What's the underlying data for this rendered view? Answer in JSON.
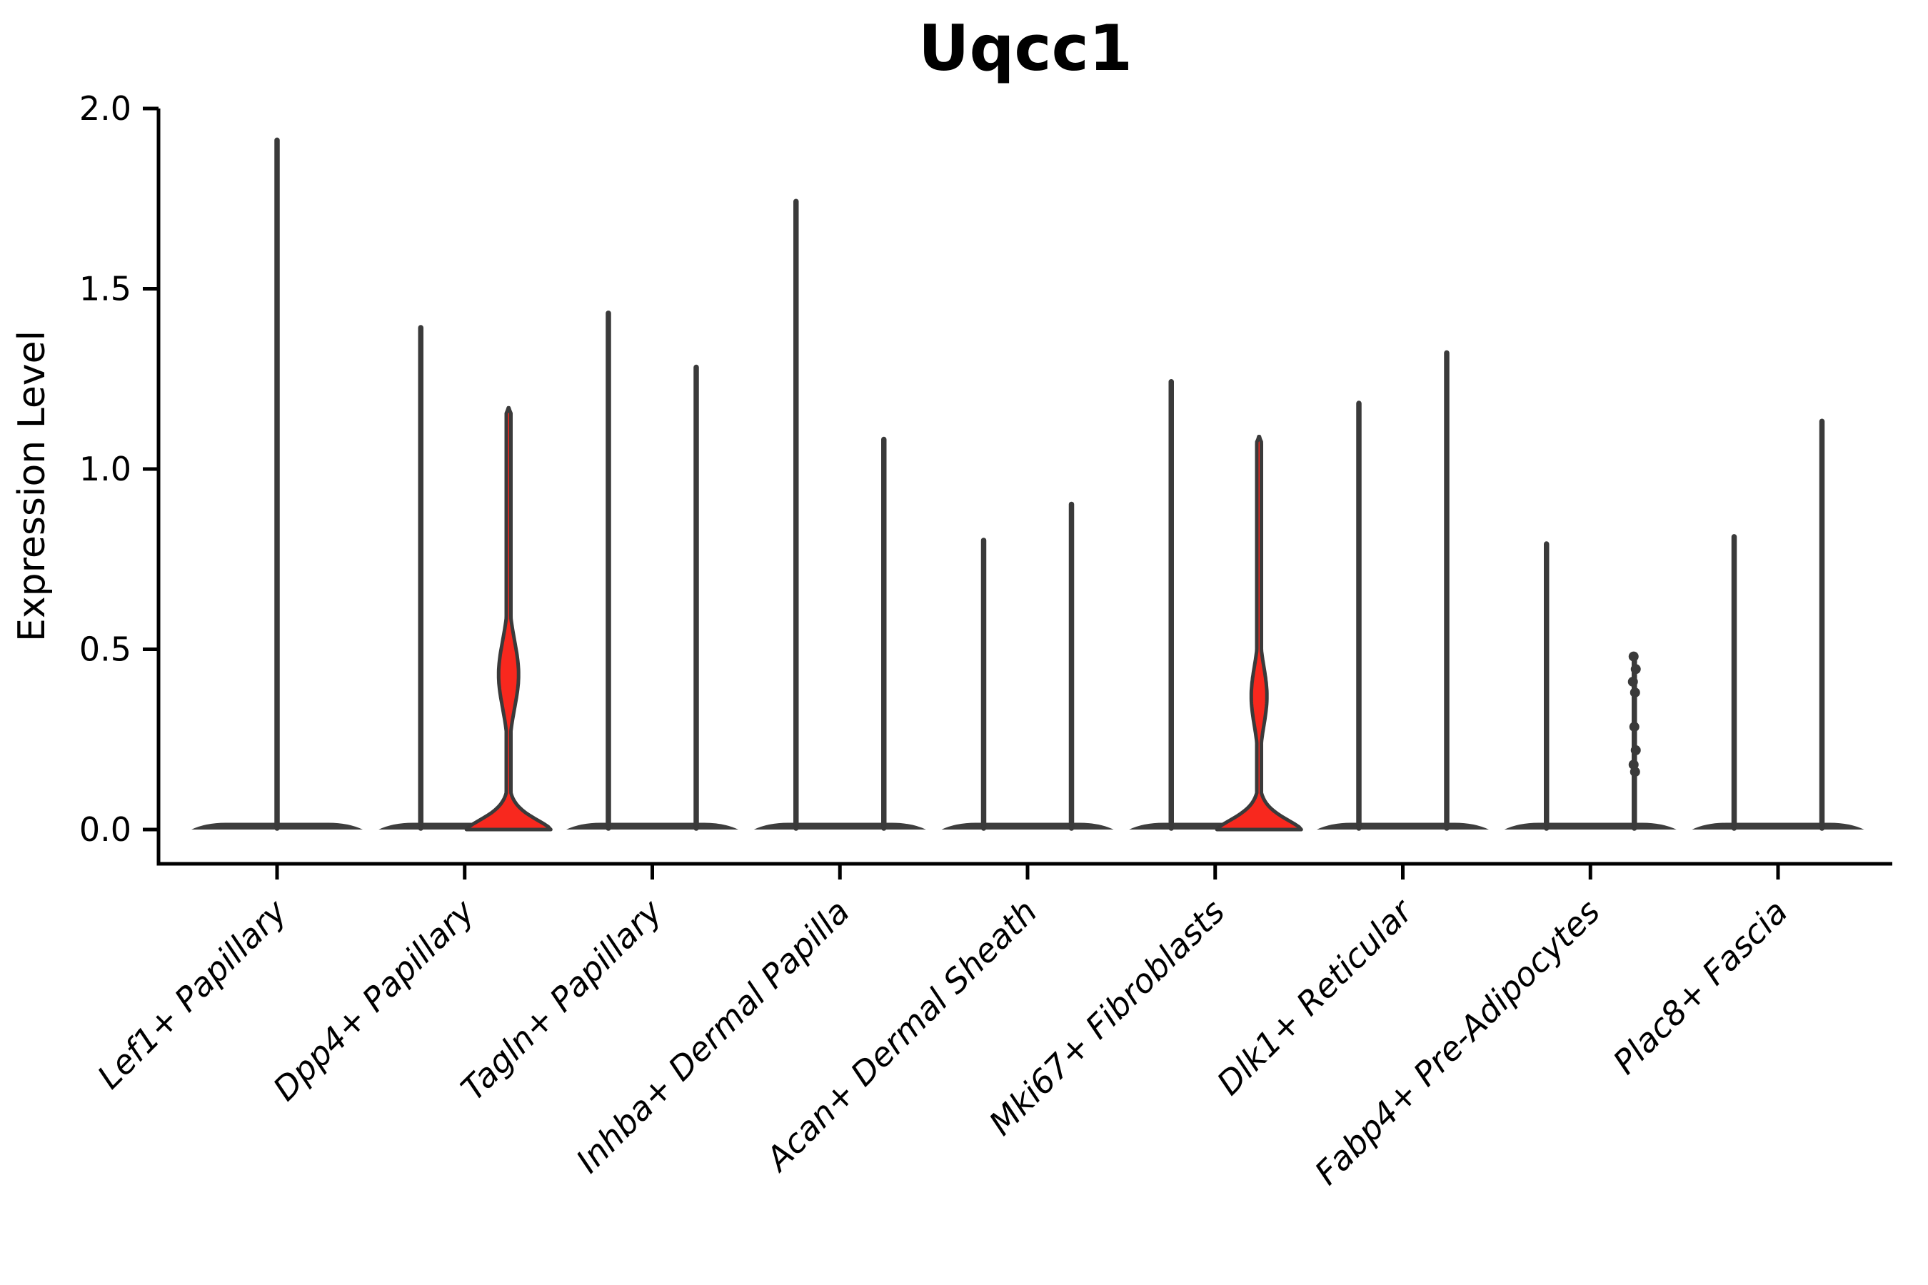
{
  "chart_data": {
    "type": "violin",
    "title": "Uqcc1",
    "ylabel": "Expression Level",
    "xlabel": "",
    "ylim": [
      0,
      2.0
    ],
    "yticks": [
      0.0,
      0.5,
      1.0,
      1.5,
      2.0
    ],
    "ytick_labels": [
      "0.0",
      "0.5",
      "1.0",
      "1.5",
      "2.0"
    ],
    "grid": false,
    "legend": "none",
    "violin_fill_color": "#f8281e",
    "violin_outline_color": "#3a3a3a",
    "axis_color": "#000000",
    "categories": [
      {
        "label": "Lef1+ Papillary",
        "violins": [
          {
            "slot": "full",
            "shape": "spike",
            "max": 1.92
          }
        ]
      },
      {
        "label": "Dpp4+ Papillary",
        "violins": [
          {
            "slot": "left",
            "shape": "spike",
            "max": 1.4
          },
          {
            "slot": "right",
            "shape": "violin",
            "max": 1.17,
            "bulge_peak": 0.43,
            "bulge_halfwidth": 14,
            "bulge_sigma": 0.13
          }
        ]
      },
      {
        "label": "Tagln+ Papillary",
        "violins": [
          {
            "slot": "left",
            "shape": "spike",
            "max": 1.44
          },
          {
            "slot": "right",
            "shape": "spike",
            "max": 1.29
          }
        ]
      },
      {
        "label": "Inhba+ Dermal Papilla",
        "violins": [
          {
            "slot": "left",
            "shape": "spike",
            "max": 1.75
          },
          {
            "slot": "right",
            "shape": "spike",
            "max": 1.09
          }
        ]
      },
      {
        "label": "Acan+ Dermal Sheath",
        "violins": [
          {
            "slot": "left",
            "shape": "spike",
            "max": 0.81
          },
          {
            "slot": "right",
            "shape": "spike",
            "max": 0.91
          }
        ]
      },
      {
        "label": "Mki67+ Fibroblasts",
        "violins": [
          {
            "slot": "left",
            "shape": "spike",
            "max": 1.25
          },
          {
            "slot": "right",
            "shape": "violin",
            "max": 1.09,
            "bulge_peak": 0.37,
            "bulge_halfwidth": 11,
            "bulge_sigma": 0.115
          }
        ]
      },
      {
        "label": "Dlk1+ Reticular",
        "violins": [
          {
            "slot": "left",
            "shape": "spike",
            "max": 1.19
          },
          {
            "slot": "right",
            "shape": "spike",
            "max": 1.33
          }
        ]
      },
      {
        "label": "Fabp4+ Pre-Adipocytes",
        "violins": [
          {
            "slot": "left",
            "shape": "spike",
            "max": 0.8
          },
          {
            "slot": "right",
            "shape": "jitter",
            "max": 0.48,
            "points": [
              0.48,
              0.445,
              0.41,
              0.38,
              0.285,
              0.22,
              0.18,
              0.16
            ]
          }
        ]
      },
      {
        "label": "Plac8+ Fascia",
        "violins": [
          {
            "slot": "left",
            "shape": "spike",
            "max": 0.82
          },
          {
            "slot": "right",
            "shape": "spike",
            "max": 1.14
          }
        ]
      }
    ]
  }
}
